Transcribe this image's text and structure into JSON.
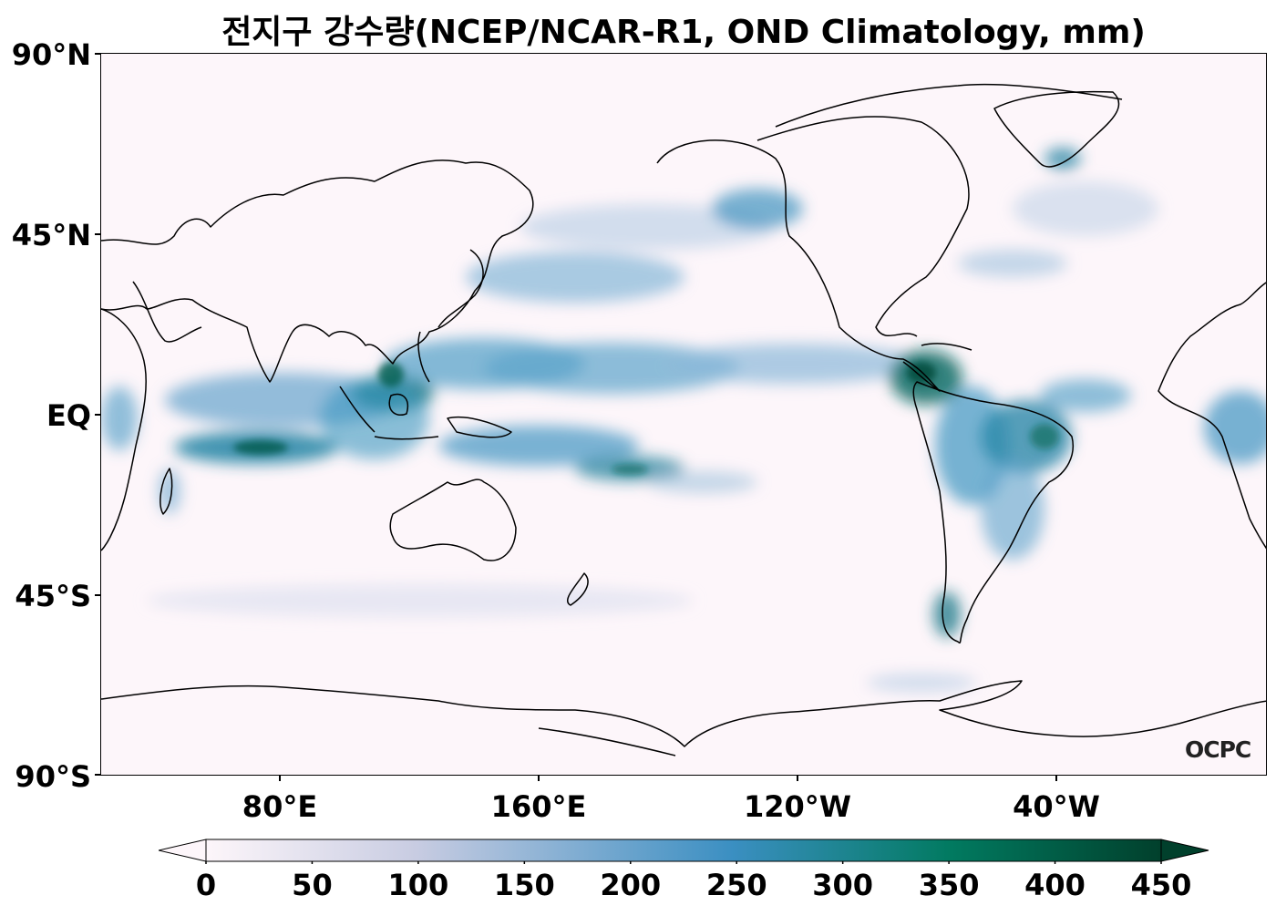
{
  "title": "전지구 강수량(NCEP/NCAR-R1, OND Climatology, mm)",
  "latitude_labels": [
    "90°N",
    "45°N",
    "EQ",
    "45°S",
    "90°S"
  ],
  "longitude_labels": [
    "80°E",
    "160°E",
    "120°W",
    "40°W"
  ],
  "colorbar": {
    "ticks": [
      "0",
      "50",
      "100",
      "150",
      "200",
      "250",
      "300",
      "350",
      "400",
      "450"
    ],
    "colors": [
      "#fdf6fa",
      "#c8cce2",
      "#3b8fc2",
      "#017a60",
      "#01402c"
    ],
    "extend": "both"
  },
  "watermark": "OCPC",
  "colors": {
    "ocean_bg": "#fdf6fa",
    "coast": "#000000",
    "rain_low": "#bcd0e6",
    "rain_mid": "#4a98c4",
    "rain_high": "#0a6f5e"
  }
}
